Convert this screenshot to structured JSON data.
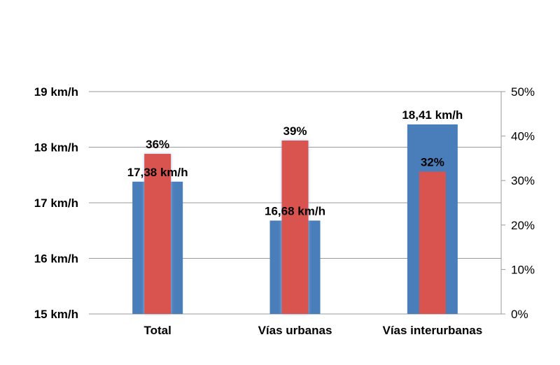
{
  "chart_data": {
    "type": "bar",
    "categories": [
      "Total",
      "Vías urbanas",
      "Vías interurbanas"
    ],
    "series": [
      {
        "axis": "left",
        "color": "#4a7ebb",
        "values": [
          17.38,
          16.68,
          18.41
        ],
        "labels": [
          "17,38 km/h",
          "16,68 km/h",
          "18,41 km/h"
        ]
      },
      {
        "axis": "right",
        "color": "#d9534f",
        "values": [
          36,
          39,
          32
        ],
        "labels": [
          "36%",
          "39%",
          "32%"
        ]
      }
    ],
    "y_left": {
      "min": 15,
      "max": 19,
      "ticks": [
        15,
        16,
        17,
        18,
        19
      ],
      "tick_labels": [
        "15 km/h",
        "16 km/h",
        "17 km/h",
        "18 km/h",
        "19 km/h"
      ]
    },
    "y_right": {
      "min": 0,
      "max": 50,
      "ticks": [
        0,
        10,
        20,
        30,
        40,
        50
      ],
      "tick_labels": [
        "0%",
        "10%",
        "20%",
        "30%",
        "40%",
        "50%"
      ]
    },
    "grid": true,
    "legend": "none"
  }
}
